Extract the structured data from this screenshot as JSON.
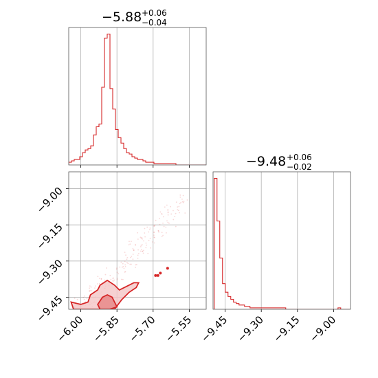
{
  "chart_data": [
    {
      "type": "histogram",
      "panel": "top-left",
      "title": {
        "value": "−5.88",
        "plus": "+0.06",
        "minus": "−0.04"
      },
      "xlim": [
        -6.05,
        -5.48
      ],
      "xticks": [
        -6.0,
        -5.85,
        -5.7,
        -5.55
      ],
      "grid": true,
      "color": "#d62728",
      "bin_edges_start": -6.05,
      "bin_width": 0.0114,
      "counts": [
        2,
        3,
        4,
        4,
        6,
        9,
        11,
        12,
        14,
        22,
        28,
        30,
        57,
        93,
        96,
        56,
        41,
        26,
        20,
        16,
        12,
        9,
        8,
        6,
        5,
        4,
        4,
        3,
        2,
        2,
        2,
        1,
        1,
        1,
        1,
        1,
        1,
        1,
        1,
        0,
        0,
        0,
        0,
        0,
        0,
        0,
        0,
        0,
        0,
        0
      ]
    },
    {
      "type": "contour",
      "panel": "bottom-left",
      "xlim": [
        -6.05,
        -5.48
      ],
      "ylim": [
        -9.5,
        -8.93
      ],
      "xticks": [
        -6.0,
        -5.85,
        -5.7,
        -5.55
      ],
      "xtick_labels": [
        "−6.00",
        "−5.85",
        "−5.70",
        "−5.55"
      ],
      "yticks": [
        -9.0,
        -9.15,
        -9.3,
        -9.45
      ],
      "ytick_labels": [
        "−9.00",
        "−9.15",
        "−9.30",
        "−9.45"
      ],
      "grid": true,
      "color": "#d62728",
      "outer_contour": [
        [
          -6.04,
          -9.47
        ],
        [
          -6.0,
          -9.48
        ],
        [
          -5.97,
          -9.47
        ],
        [
          -5.96,
          -9.44
        ],
        [
          -5.93,
          -9.42
        ],
        [
          -5.92,
          -9.4
        ],
        [
          -5.89,
          -9.38
        ],
        [
          -5.86,
          -9.4
        ],
        [
          -5.84,
          -9.42
        ],
        [
          -5.82,
          -9.41
        ],
        [
          -5.8,
          -9.4
        ],
        [
          -5.78,
          -9.39
        ],
        [
          -5.76,
          -9.39
        ],
        [
          -5.77,
          -9.41
        ],
        [
          -5.8,
          -9.43
        ],
        [
          -5.83,
          -9.46
        ],
        [
          -5.86,
          -9.5
        ],
        [
          -6.03,
          -9.5
        ]
      ],
      "inner_contour": [
        [
          -5.93,
          -9.48
        ],
        [
          -5.91,
          -9.45
        ],
        [
          -5.89,
          -9.44
        ],
        [
          -5.87,
          -9.45
        ],
        [
          -5.86,
          -9.47
        ],
        [
          -5.85,
          -9.49
        ],
        [
          -5.88,
          -9.5
        ],
        [
          -5.92,
          -9.5
        ]
      ],
      "outlier_points": [
        [
          -5.64,
          -9.33
        ],
        [
          -5.67,
          -9.35
        ],
        [
          -5.68,
          -9.36
        ],
        [
          -5.69,
          -9.36
        ]
      ]
    },
    {
      "type": "histogram",
      "panel": "bottom-right",
      "title": {
        "value": "−9.48",
        "plus": "+0.06",
        "minus": "−0.02"
      },
      "xlim": [
        -9.5,
        -8.93
      ],
      "xticks": [
        -9.45,
        -9.3,
        -9.15,
        -9.0
      ],
      "xtick_labels": [
        "−9.45",
        "−9.30",
        "−9.15",
        "−9.00"
      ],
      "grid": true,
      "color": "#d62728",
      "bin_edges_start": -9.495,
      "bin_width": 0.0114,
      "counts": [
        92,
        62,
        36,
        18,
        12,
        9,
        7,
        5,
        4,
        3,
        3,
        2,
        2,
        1,
        1,
        1,
        1,
        1,
        1,
        1,
        1,
        1,
        1,
        1,
        1,
        1,
        0,
        0,
        0,
        0,
        0,
        0,
        0,
        0,
        0,
        0,
        0,
        0,
        0,
        0,
        0,
        0,
        0,
        0,
        0,
        1,
        0,
        0,
        0,
        0
      ]
    }
  ]
}
